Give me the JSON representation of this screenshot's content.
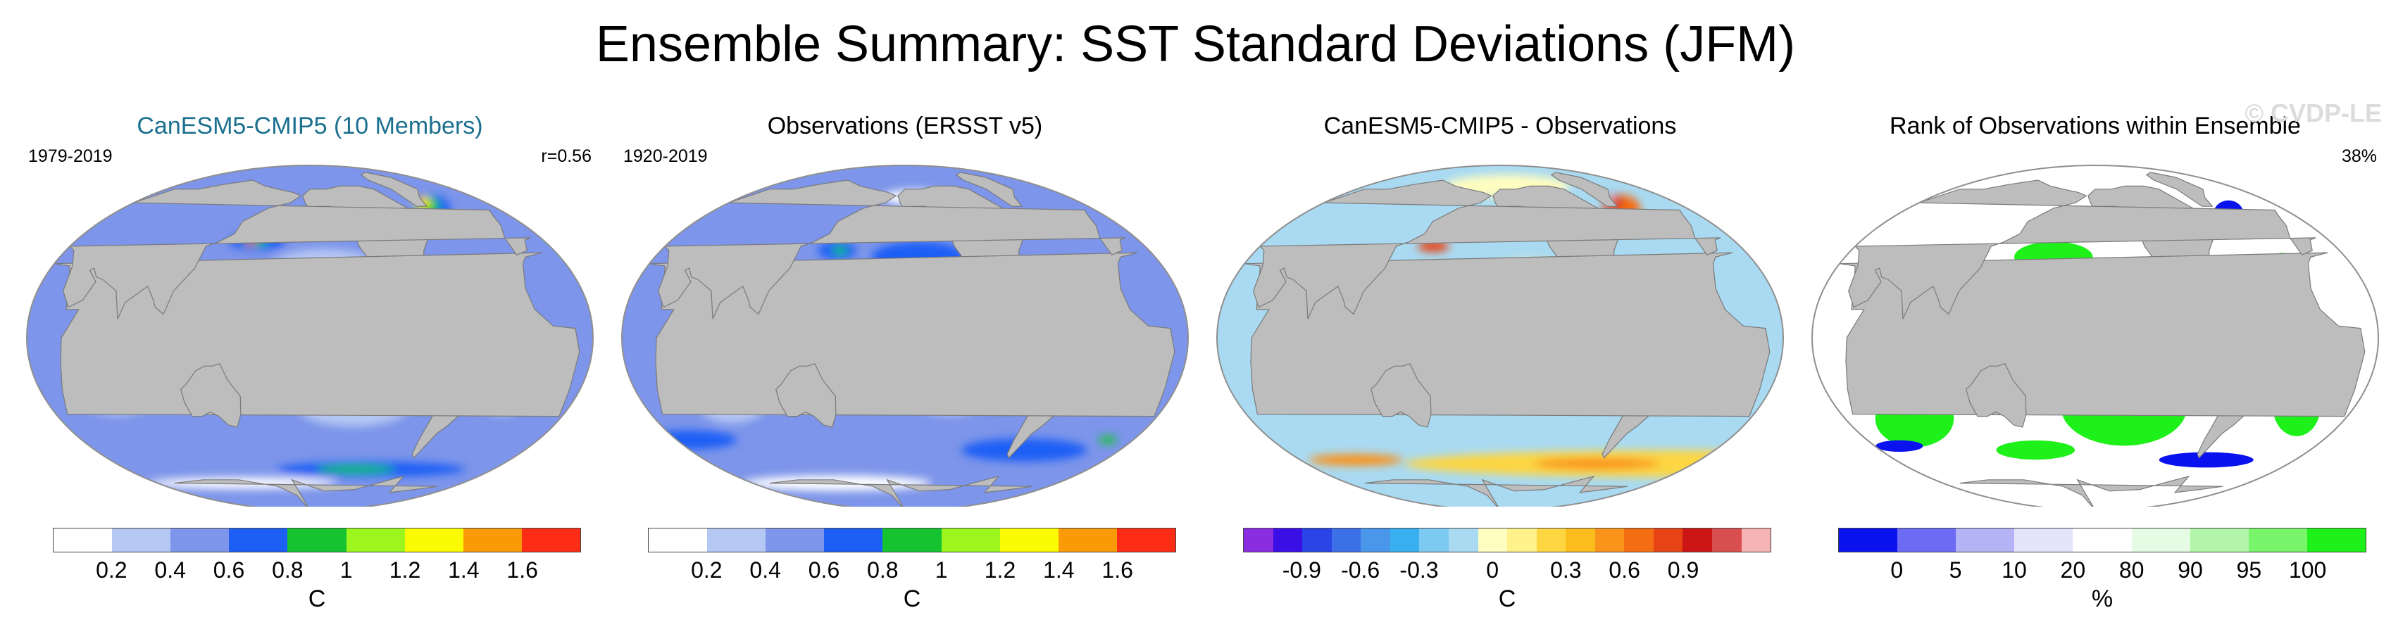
{
  "title": "Ensemble Summary: SST Standard Deviations (JFM)",
  "colors": {
    "land": "#bdbdbd",
    "ocean_border": "#8f8f8f"
  },
  "chart_data": [
    {
      "type": "heatmap",
      "title": "CanESM5-CMIP5 (10 Members)",
      "period": "1979-2019",
      "stat": "r=0.56",
      "watermark": "",
      "unit": "C",
      "colorbar": {
        "colors": [
          "#ffffff",
          "#b5c7f3",
          "#7d95ea",
          "#1d5ff5",
          "#15c331",
          "#9cf51c",
          "#fbfc04",
          "#fb9a07",
          "#fd2c14"
        ],
        "ticks": [
          "0.2",
          "0.4",
          "0.6",
          "0.8",
          "1",
          "1.2",
          "1.4",
          "1.6"
        ],
        "tick_positions": [
          1,
          2,
          3,
          4,
          5,
          6,
          7,
          8
        ]
      },
      "ocean_base": "#7d95ea",
      "features": [
        {
          "lon": -125,
          "lat": 0,
          "rx": 40,
          "ry": 5,
          "color": "#1d5ff5"
        },
        {
          "lon": -125,
          "lat": 0,
          "rx": 28,
          "ry": 3,
          "color": "#15c331"
        },
        {
          "lon": -125,
          "lat": 0,
          "rx": 12,
          "ry": 1.5,
          "color": "#9cf51c"
        },
        {
          "lon": -150,
          "lat": 30,
          "rx": 35,
          "ry": 10,
          "color": "#b5c7f3"
        },
        {
          "lon": -130,
          "lat": -30,
          "rx": 35,
          "ry": 10,
          "color": "#b5c7f3"
        },
        {
          "lon": 70,
          "lat": -25,
          "rx": 25,
          "ry": 10,
          "color": "#b5c7f3"
        },
        {
          "lon": -30,
          "lat": -25,
          "rx": 15,
          "ry": 10,
          "color": "#b5c7f3"
        },
        {
          "lon": 160,
          "lat": 42,
          "rx": 18,
          "ry": 4,
          "color": "#1d5ff5"
        },
        {
          "lon": 158,
          "lat": 42,
          "rx": 8,
          "ry": 2,
          "color": "#15c331"
        },
        {
          "lon": 155,
          "lat": 42,
          "rx": 3,
          "ry": 1.5,
          "color": "#fd2c14"
        },
        {
          "lon": -45,
          "lat": 58,
          "rx": 12,
          "ry": 8,
          "color": "#1d5ff5"
        },
        {
          "lon": -45,
          "lat": 60,
          "rx": 8,
          "ry": 5,
          "color": "#15c331"
        },
        {
          "lon": -45,
          "lat": 62,
          "rx": 5,
          "ry": 3,
          "color": "#fbfc04"
        },
        {
          "lon": -45,
          "lat": 63,
          "rx": 2.5,
          "ry": 1.5,
          "color": "#fd2c14"
        },
        {
          "lon": -100,
          "lat": -60,
          "rx": 60,
          "ry": 4,
          "color": "#1d5ff5"
        },
        {
          "lon": -115,
          "lat": -60,
          "rx": 25,
          "ry": 2,
          "color": "#15c331"
        },
        {
          "lon": 120,
          "lat": -68,
          "rx": 60,
          "ry": 3,
          "color": "#ffffff"
        }
      ]
    },
    {
      "type": "heatmap",
      "title": "Observations (ERSST v5)",
      "period": "1920-2019",
      "stat": "",
      "watermark": "",
      "unit": "C",
      "colorbar": {
        "colors": [
          "#ffffff",
          "#b5c7f3",
          "#7d95ea",
          "#1d5ff5",
          "#15c331",
          "#9cf51c",
          "#fbfc04",
          "#fb9a07",
          "#fd2c14"
        ],
        "ticks": [
          "0.2",
          "0.4",
          "0.6",
          "0.8",
          "1",
          "1.2",
          "1.4",
          "1.6"
        ],
        "tick_positions": [
          1,
          2,
          3,
          4,
          5,
          6,
          7,
          8
        ]
      },
      "ocean_base": "#7d95ea",
      "features": [
        {
          "lon": -120,
          "lat": 0,
          "rx": 45,
          "ry": 6,
          "color": "#1d5ff5"
        },
        {
          "lon": -120,
          "lat": 0,
          "rx": 30,
          "ry": 3,
          "color": "#15c331"
        },
        {
          "lon": -150,
          "lat": 35,
          "rx": 30,
          "ry": 8,
          "color": "#1d5ff5"
        },
        {
          "lon": 150,
          "lat": 38,
          "rx": 12,
          "ry": 5,
          "color": "#1d5ff5"
        },
        {
          "lon": 152,
          "lat": 38,
          "rx": 5,
          "ry": 2,
          "color": "#15c331"
        },
        {
          "lon": -130,
          "lat": -25,
          "rx": 25,
          "ry": 10,
          "color": "#b5c7f3"
        },
        {
          "lon": 80,
          "lat": -30,
          "rx": 20,
          "ry": 8,
          "color": "#b5c7f3"
        },
        {
          "lon": -60,
          "lat": -50,
          "rx": 40,
          "ry": 6,
          "color": "#1d5ff5"
        },
        {
          "lon": 30,
          "lat": -45,
          "rx": 30,
          "ry": 5,
          "color": "#1d5ff5"
        },
        {
          "lon": 0,
          "lat": -45,
          "rx": 6,
          "ry": 2,
          "color": "#15c331"
        },
        {
          "lon": 120,
          "lat": -68,
          "rx": 60,
          "ry": 4,
          "color": "#ffffff"
        },
        {
          "lon": -150,
          "lat": 65,
          "rx": 20,
          "ry": 4,
          "color": "#ffffff"
        }
      ]
    },
    {
      "type": "heatmap",
      "title": "CanESM5-CMIP5 - Observations",
      "period": "",
      "stat": "",
      "watermark": "",
      "unit": "C",
      "colorbar": {
        "colors": [
          "#8a2ce0",
          "#3a0fe6",
          "#2a44e6",
          "#3c70e8",
          "#4a96ea",
          "#38b0f0",
          "#7ccaf2",
          "#a9daf2",
          "#fffdc0",
          "#fff28a",
          "#fdd642",
          "#fbbc1e",
          "#f9931a",
          "#f46d12",
          "#e64415",
          "#cc1616",
          "#d94e4e",
          "#f5b3b3"
        ],
        "ticks": [
          "-0.9",
          "-0.6",
          "-0.3",
          "0",
          "0.3",
          "0.6",
          "0.9"
        ],
        "tick_positions": [
          2,
          4,
          6,
          8.5,
          11,
          13,
          15
        ]
      },
      "ocean_base": "#a9daf2",
      "features": [
        {
          "lon": -140,
          "lat": 25,
          "rx": 35,
          "ry": 10,
          "color": "#fff28a"
        },
        {
          "lon": 175,
          "lat": 10,
          "rx": 25,
          "ry": 6,
          "color": "#7ccaf2"
        },
        {
          "lon": -110,
          "lat": -20,
          "rx": 25,
          "ry": 8,
          "color": "#fffdc0"
        },
        {
          "lon": -90,
          "lat": 0,
          "rx": 15,
          "ry": 4,
          "color": "#38b0f0"
        },
        {
          "lon": -30,
          "lat": -15,
          "rx": 12,
          "ry": 15,
          "color": "#38b0f0"
        },
        {
          "lon": 70,
          "lat": -10,
          "rx": 18,
          "ry": 8,
          "color": "#7ccaf2"
        },
        {
          "lon": 0,
          "lat": -57,
          "rx": 170,
          "ry": 7,
          "color": "#fdd642"
        },
        {
          "lon": -70,
          "lat": -57,
          "rx": 40,
          "ry": 3,
          "color": "#f9931a"
        },
        {
          "lon": 70,
          "lat": -55,
          "rx": 30,
          "ry": 3,
          "color": "#f9931a"
        },
        {
          "lon": 150,
          "lat": 40,
          "rx": 10,
          "ry": 3,
          "color": "#e64415"
        },
        {
          "lon": -45,
          "lat": 58,
          "rx": 12,
          "ry": 8,
          "color": "#f46d12"
        },
        {
          "lon": -45,
          "lat": 62,
          "rx": 6,
          "ry": 4,
          "color": "#cc1616"
        },
        {
          "lon": -45,
          "lat": 63,
          "rx": 3,
          "ry": 2,
          "color": "#f5b3b3"
        },
        {
          "lon": -150,
          "lat": 72,
          "rx": 40,
          "ry": 6,
          "color": "#fffdc0"
        }
      ]
    },
    {
      "type": "heatmap",
      "title": "Rank of Observations within Ensemble",
      "period": "",
      "stat": "38%",
      "watermark": "© CVDP-LE",
      "unit": "%",
      "colorbar": {
        "colors": [
          "#0a12f0",
          "#6b6bf4",
          "#b3b3f6",
          "#e4e4fb",
          "#ffffff",
          "#e6fbe3",
          "#b2f5aa",
          "#78f56a",
          "#1ef01a"
        ],
        "ticks": [
          "0",
          "5",
          "10",
          "20",
          "80",
          "90",
          "95",
          "100"
        ],
        "tick_positions": [
          1,
          2,
          3,
          4,
          5,
          6,
          7,
          8
        ]
      },
      "ocean_base": "#ffffff",
      "features": [
        {
          "lon": -140,
          "lat": -30,
          "rx": 40,
          "ry": 20,
          "color": "#1ef01a"
        },
        {
          "lon": 70,
          "lat": -35,
          "rx": 25,
          "ry": 15,
          "color": "#1ef01a"
        },
        {
          "lon": -20,
          "lat": -30,
          "rx": 15,
          "ry": 15,
          "color": "#1ef01a"
        },
        {
          "lon": 170,
          "lat": 35,
          "rx": 25,
          "ry": 8,
          "color": "#1ef01a"
        },
        {
          "lon": -140,
          "lat": 20,
          "rx": 20,
          "ry": 6,
          "color": "#0a12f0"
        },
        {
          "lon": 160,
          "lat": 5,
          "rx": 15,
          "ry": 5,
          "color": "#0a12f0"
        },
        {
          "lon": -100,
          "lat": -10,
          "rx": 12,
          "ry": 5,
          "color": "#0a12f0"
        },
        {
          "lon": 90,
          "lat": -15,
          "rx": 8,
          "ry": 5,
          "color": "#0a12f0"
        },
        {
          "lon": -40,
          "lat": 55,
          "rx": 10,
          "ry": 8,
          "color": "#0a12f0"
        },
        {
          "lon": -30,
          "lat": 30,
          "rx": 10,
          "ry": 8,
          "color": "#1ef01a"
        },
        {
          "lon": -60,
          "lat": -55,
          "rx": 30,
          "ry": 4,
          "color": "#0a12f0"
        },
        {
          "lon": 40,
          "lat": -48,
          "rx": 15,
          "ry": 3,
          "color": "#0a12f0"
        },
        {
          "lon": -20,
          "lat": 5,
          "rx": 8,
          "ry": 6,
          "color": "#0a12f0"
        },
        {
          "lon": 150,
          "lat": -50,
          "rx": 25,
          "ry": 5,
          "color": "#1ef01a"
        }
      ]
    }
  ]
}
